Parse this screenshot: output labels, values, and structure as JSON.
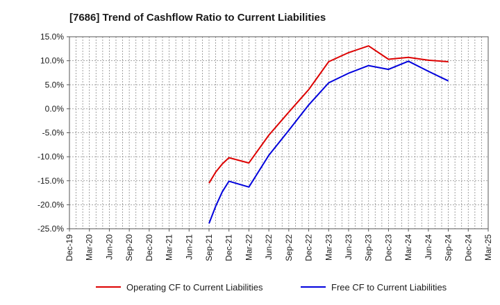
{
  "chart_data": {
    "type": "line",
    "title": "[7686]  Trend of Cashflow Ratio to Current Liabilities",
    "xlabel": "",
    "ylabel": "",
    "x_ticks": [
      "Dec-19",
      "Mar-20",
      "Jun-20",
      "Sep-20",
      "Dec-20",
      "Mar-21",
      "Jun-21",
      "Sep-21",
      "Dec-21",
      "Mar-22",
      "Jun-22",
      "Sep-22",
      "Dec-22",
      "Mar-23",
      "Jun-23",
      "Sep-23",
      "Dec-23",
      "Mar-24",
      "Jun-24",
      "Sep-24",
      "Dec-24",
      "Mar-25"
    ],
    "y_ticks": [
      "15.0%",
      "10.0%",
      "5.0%",
      "0.0%",
      "-5.0%",
      "-10.0%",
      "-15.0%",
      "-20.0%",
      "-25.0%"
    ],
    "ylim": [
      -25,
      15
    ],
    "grid": true,
    "legend_position": "bottom",
    "series": [
      {
        "name": "Operating CF to Current Liabilities",
        "color": "#dd0000",
        "points": [
          [
            "Sep-21",
            -15.5
          ],
          [
            "Oct-21",
            -13.2
          ],
          [
            "Nov-21",
            -11.5
          ],
          [
            "Dec-21",
            -10.2
          ],
          [
            "Mar-22",
            -11.3
          ],
          [
            "Jun-22",
            -5.5
          ],
          [
            "Sep-22",
            -0.7
          ],
          [
            "Dec-22",
            4.0
          ],
          [
            "Mar-23",
            9.8
          ],
          [
            "Jun-23",
            11.7
          ],
          [
            "Sep-23",
            13.1
          ],
          [
            "Dec-23",
            10.3
          ],
          [
            "Mar-24",
            10.7
          ],
          [
            "Jun-24",
            10.1
          ],
          [
            "Sep-24",
            9.8
          ]
        ]
      },
      {
        "name": "Free CF to Current Liabilities",
        "color": "#0000dd",
        "points": [
          [
            "Sep-21",
            -23.9
          ],
          [
            "Oct-21",
            -20.3
          ],
          [
            "Nov-21",
            -17.3
          ],
          [
            "Dec-21",
            -15.1
          ],
          [
            "Mar-22",
            -16.3
          ],
          [
            "Jun-22",
            -9.7
          ],
          [
            "Sep-22",
            -4.5
          ],
          [
            "Dec-22",
            0.8
          ],
          [
            "Mar-23",
            5.4
          ],
          [
            "Jun-23",
            7.4
          ],
          [
            "Sep-23",
            9.0
          ],
          [
            "Dec-23",
            8.2
          ],
          [
            "Mar-24",
            9.9
          ],
          [
            "Jun-24",
            7.8
          ],
          [
            "Sep-24",
            5.8
          ]
        ]
      }
    ]
  }
}
